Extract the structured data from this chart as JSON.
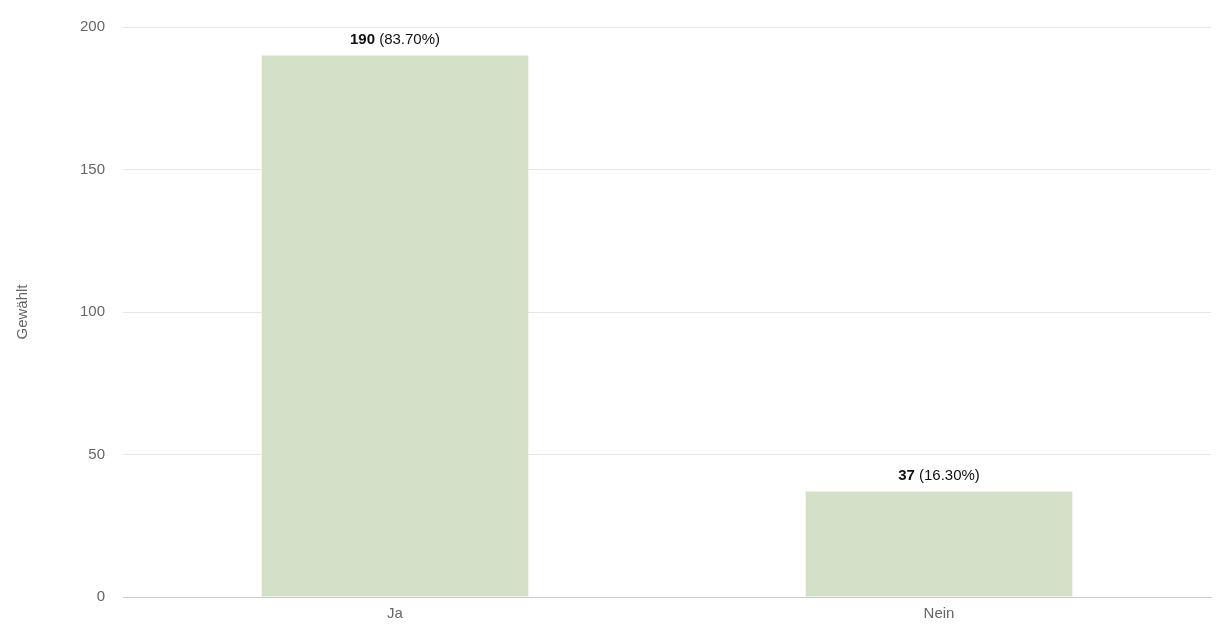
{
  "chart_data": {
    "type": "bar",
    "ylabel": "Gewählt",
    "categories": [
      "Ja",
      "Nein"
    ],
    "values": [
      190,
      37
    ],
    "color": "#d4e0c8",
    "value_labels": [
      "190 (83.70%)",
      "37 (16.30%)"
    ],
    "ylim": [
      0,
      200
    ],
    "yticks": [
      0,
      50,
      100,
      150,
      200
    ],
    "grid": "y",
    "legend": false
  }
}
